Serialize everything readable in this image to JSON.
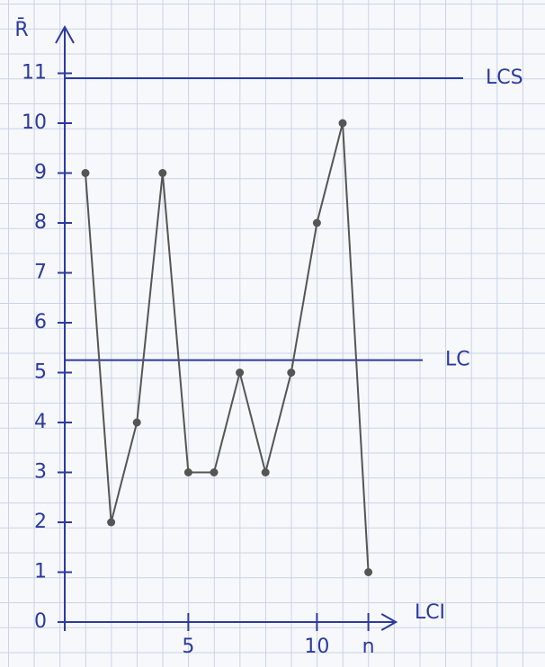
{
  "chart_data": {
    "type": "line",
    "y_label": "R̄",
    "x_label": "LCI",
    "x": [
      1,
      2,
      3,
      4,
      5,
      6,
      7,
      8,
      9,
      10,
      11,
      12
    ],
    "series": [
      {
        "color": "#555555",
        "values": [
          9,
          2,
          4,
          9,
          3,
          3,
          5,
          3,
          5,
          8,
          10,
          1
        ]
      }
    ],
    "xlim": [
      0,
      13
    ],
    "ylim": [
      0,
      12
    ],
    "xticks": [
      5,
      10,
      {
        "value": 12,
        "label": "n"
      }
    ],
    "yticks": [
      0,
      1,
      2,
      3,
      4,
      5,
      6,
      7,
      8,
      9,
      10,
      11
    ],
    "reference_lines": [
      {
        "label": "LCS",
        "value": 10.9,
        "color": "#2b3a9e"
      },
      {
        "label": "LC",
        "value": 5.25,
        "color": "#2b3a9e"
      }
    ],
    "axis_color": "#2b3a9e"
  }
}
